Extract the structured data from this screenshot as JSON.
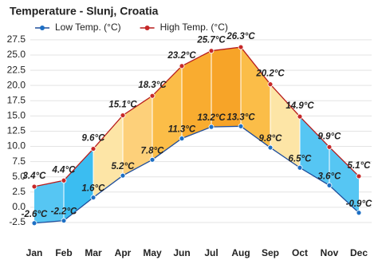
{
  "chart_data": {
    "type": "line",
    "title": "Temperature - Slunj, Croatia",
    "categories": [
      "Jan",
      "Feb",
      "Mar",
      "Apr",
      "May",
      "Jun",
      "Jul",
      "Aug",
      "Sep",
      "Oct",
      "Nov",
      "Dec"
    ],
    "series": [
      {
        "name": "Low Temp. (°C)",
        "color": "#1f4e9c",
        "marker_color": "#1e6fc4",
        "label_color": "#1e88e5",
        "values": [
          -2.6,
          -2.2,
          1.6,
          5.2,
          7.8,
          11.3,
          13.2,
          13.3,
          9.8,
          6.5,
          3.6,
          -0.9
        ],
        "value_labels": [
          "-2.6°C",
          "-2.2°C",
          "1.6°C",
          "5.2°C",
          "7.8°C",
          "11.3°C",
          "13.2°C",
          "13.3°C",
          "9.8°C",
          "6.5°C",
          "3.6°C",
          "-0.9°C"
        ]
      },
      {
        "name": "High Temp. (°C)",
        "color": "#b71c1c",
        "marker_color": "#c62828",
        "label_color": "#c62828",
        "values": [
          3.4,
          4.4,
          9.6,
          15.1,
          18.3,
          23.2,
          25.7,
          26.3,
          20.2,
          14.9,
          9.9,
          5.1
        ],
        "value_labels": [
          "3.4°C",
          "4.4°C",
          "9.6°C",
          "15.1°C",
          "18.3°C",
          "23.2°C",
          "25.7°C",
          "26.3°C",
          "20.2°C",
          "14.9°C",
          "9.9°C",
          "5.1°C"
        ]
      }
    ],
    "band_colors": [
      "#56c6f3",
      "#3bbdf1",
      "#fde5a6",
      "#fdd07a",
      "#fbbd48",
      "#f9ac30",
      "#f7a428",
      "#fbbd48",
      "#fde5a6",
      "#56c6f3",
      "#56c6f3"
    ],
    "ylim": [
      -4.6,
      28.8
    ],
    "yticks": [
      {
        "value": -2.5,
        "label": "-2.5"
      },
      {
        "value": 0,
        "label": "0.0"
      },
      {
        "value": 2.5,
        "label": "2.5"
      },
      {
        "value": 5,
        "label": "5.0"
      },
      {
        "value": 7.5,
        "label": "7.5"
      },
      {
        "value": 10,
        "label": "10.0"
      },
      {
        "value": 12.5,
        "label": "12.5"
      },
      {
        "value": 15,
        "label": "15.0"
      },
      {
        "value": 17.5,
        "label": "17.5"
      },
      {
        "value": 20,
        "label": "20.0"
      },
      {
        "value": 22.5,
        "label": "22.5"
      },
      {
        "value": 25,
        "label": "25.0"
      },
      {
        "value": 27.5,
        "label": "27.5"
      }
    ],
    "grid": true,
    "legend": "top"
  }
}
